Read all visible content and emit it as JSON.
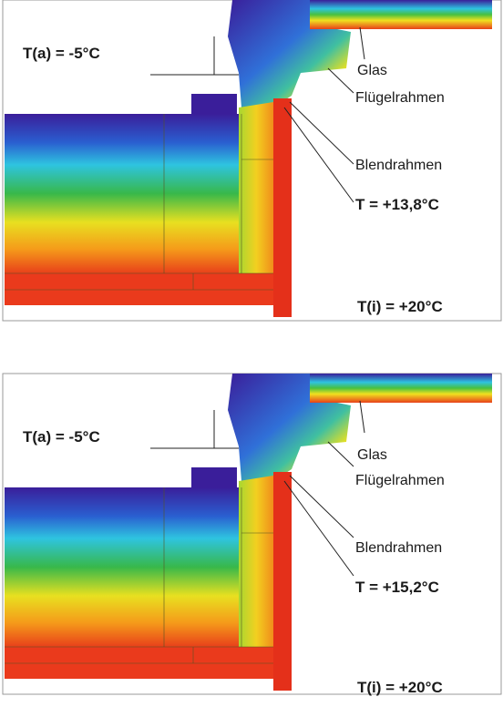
{
  "panels": [
    {
      "ambient": "T(a) = -5°C",
      "labels": [
        "Glas",
        "Flügelrahmen",
        "Blendrahmen"
      ],
      "surface_temp": "T = +13,8°C",
      "interior": "T(i) = +20°C"
    },
    {
      "ambient": "T(a) = -5°C",
      "labels": [
        "Glas",
        "Flügelrahmen",
        "Blendrahmen"
      ],
      "surface_temp": "T = +15,2°C",
      "interior": "T(i) = +20°C"
    }
  ]
}
